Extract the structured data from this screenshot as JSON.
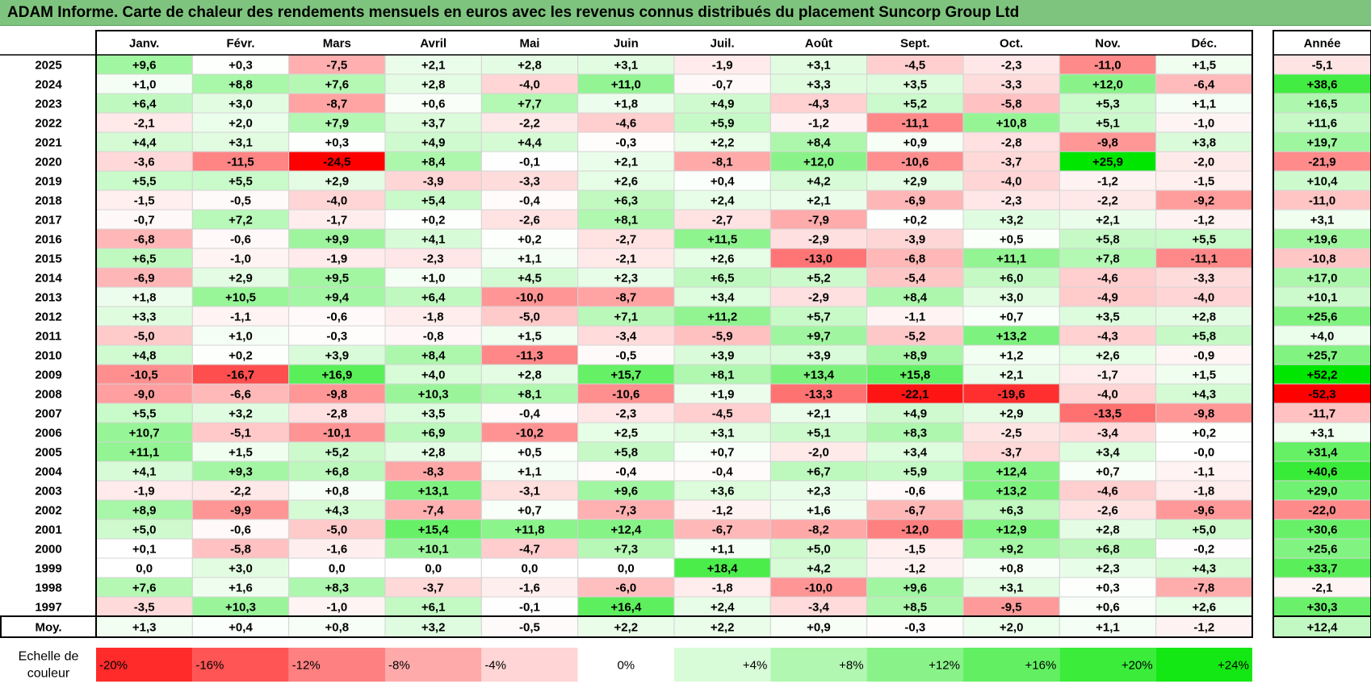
{
  "title": "ADAM Informe. Carte de chaleur des rendements mensuels en euros avec les revenus connus distribués du placement Suncorp Group Ltd",
  "chart_data": {
    "type": "heatmap",
    "months": [
      "Janv.",
      "Févr.",
      "Mars",
      "Avril",
      "Mai",
      "Juin",
      "Juil.",
      "Août",
      "Sept.",
      "Oct.",
      "Nov.",
      "Déc."
    ],
    "year_header": "Année",
    "avg_label": "Moy.",
    "rows": [
      {
        "year": "2025",
        "values": [
          "+9,6",
          "+0,3",
          "-7,5",
          "+2,1",
          "+2,8",
          "+3,1",
          "-1,9",
          "+3,1",
          "-4,5",
          "-2,3",
          "-11,0",
          "+1,5"
        ],
        "annual": "-5,1"
      },
      {
        "year": "2024",
        "values": [
          "+1,0",
          "+8,8",
          "+7,6",
          "+2,8",
          "-4,0",
          "+11,0",
          "-0,7",
          "+3,3",
          "+3,5",
          "-3,3",
          "+12,0",
          "-6,4"
        ],
        "annual": "+38,6"
      },
      {
        "year": "2023",
        "values": [
          "+6,4",
          "+3,0",
          "-8,7",
          "+0,6",
          "+7,7",
          "+1,8",
          "+4,9",
          "-4,3",
          "+5,2",
          "-5,8",
          "+5,3",
          "+1,1"
        ],
        "annual": "+16,5"
      },
      {
        "year": "2022",
        "values": [
          "-2,1",
          "+2,0",
          "+7,9",
          "+3,7",
          "-2,2",
          "-4,6",
          "+5,9",
          "-1,2",
          "-11,1",
          "+10,8",
          "+5,1",
          "-1,0"
        ],
        "annual": "+11,6"
      },
      {
        "year": "2021",
        "values": [
          "+4,4",
          "+3,1",
          "+0,3",
          "+4,9",
          "+4,4",
          "-0,3",
          "+2,2",
          "+8,4",
          "+0,9",
          "-2,8",
          "-9,8",
          "+3,8"
        ],
        "annual": "+19,7"
      },
      {
        "year": "2020",
        "values": [
          "-3,6",
          "-11,5",
          "-24,5",
          "+8,4",
          "-0,1",
          "+2,1",
          "-8,1",
          "+12,0",
          "-10,6",
          "-3,7",
          "+25,9",
          "-2,0"
        ],
        "annual": "-21,9"
      },
      {
        "year": "2019",
        "values": [
          "+5,5",
          "+5,5",
          "+2,9",
          "-3,9",
          "-3,3",
          "+2,6",
          "+0,4",
          "+4,2",
          "+2,9",
          "-4,0",
          "-1,2",
          "-1,5"
        ],
        "annual": "+10,4"
      },
      {
        "year": "2018",
        "values": [
          "-1,5",
          "-0,5",
          "-4,0",
          "+5,4",
          "-0,4",
          "+6,3",
          "+2,4",
          "+2,1",
          "-6,9",
          "-2,3",
          "-2,2",
          "-9,2"
        ],
        "annual": "-11,0"
      },
      {
        "year": "2017",
        "values": [
          "-0,7",
          "+7,2",
          "-1,7",
          "+0,2",
          "-2,6",
          "+8,1",
          "-2,7",
          "-7,9",
          "+0,2",
          "+3,2",
          "+2,1",
          "-1,2"
        ],
        "annual": "+3,1"
      },
      {
        "year": "2016",
        "values": [
          "-6,8",
          "-0,6",
          "+9,9",
          "+4,1",
          "+0,2",
          "-2,7",
          "+11,5",
          "-2,9",
          "-3,9",
          "+0,5",
          "+5,8",
          "+5,5"
        ],
        "annual": "+19,6"
      },
      {
        "year": "2015",
        "values": [
          "+6,5",
          "-1,0",
          "-1,9",
          "-2,3",
          "+1,1",
          "-2,1",
          "+2,6",
          "-13,0",
          "-6,8",
          "+11,1",
          "+7,8",
          "-11,1"
        ],
        "annual": "-10,8"
      },
      {
        "year": "2014",
        "values": [
          "-6,9",
          "+2,9",
          "+9,5",
          "+1,0",
          "+4,5",
          "+2,3",
          "+6,5",
          "+5,2",
          "-5,4",
          "+6,0",
          "-4,6",
          "-3,3"
        ],
        "annual": "+17,0"
      },
      {
        "year": "2013",
        "values": [
          "+1,8",
          "+10,5",
          "+9,4",
          "+6,4",
          "-10,0",
          "-8,7",
          "+3,4",
          "-2,9",
          "+8,4",
          "+3,0",
          "-4,9",
          "-4,0"
        ],
        "annual": "+10,1"
      },
      {
        "year": "2012",
        "values": [
          "+3,3",
          "-1,1",
          "-0,6",
          "-1,8",
          "-5,0",
          "+7,1",
          "+11,2",
          "+5,7",
          "-1,1",
          "+0,7",
          "+3,5",
          "+2,8"
        ],
        "annual": "+25,6"
      },
      {
        "year": "2011",
        "values": [
          "-5,0",
          "+1,0",
          "-0,3",
          "-0,8",
          "+1,5",
          "-3,4",
          "-5,9",
          "+9,7",
          "-5,2",
          "+13,2",
          "-4,3",
          "+5,8"
        ],
        "annual": "+4,0"
      },
      {
        "year": "2010",
        "values": [
          "+4,8",
          "+0,2",
          "+3,9",
          "+8,4",
          "-11,3",
          "-0,5",
          "+3,9",
          "+3,9",
          "+8,9",
          "+1,2",
          "+2,6",
          "-0,9"
        ],
        "annual": "+25,7"
      },
      {
        "year": "2009",
        "values": [
          "-10,5",
          "-16,7",
          "+16,9",
          "+4,0",
          "+2,8",
          "+15,7",
          "+8,1",
          "+13,4",
          "+15,8",
          "+2,1",
          "-1,7",
          "+1,5"
        ],
        "annual": "+52,2"
      },
      {
        "year": "2008",
        "values": [
          "-9,0",
          "-6,6",
          "-9,8",
          "+10,3",
          "+8,1",
          "-10,6",
          "+1,9",
          "-13,3",
          "-22,1",
          "-19,6",
          "-4,0",
          "+4,3"
        ],
        "annual": "-52,3"
      },
      {
        "year": "2007",
        "values": [
          "+5,5",
          "+3,2",
          "-2,8",
          "+3,5",
          "-0,4",
          "-2,3",
          "-4,5",
          "+2,1",
          "+4,9",
          "+2,9",
          "-13,5",
          "-9,8"
        ],
        "annual": "-11,7"
      },
      {
        "year": "2006",
        "values": [
          "+10,7",
          "-5,1",
          "-10,1",
          "+6,9",
          "-10,2",
          "+2,5",
          "+3,1",
          "+5,1",
          "+8,3",
          "-2,5",
          "-3,4",
          "+0,2"
        ],
        "annual": "+3,1"
      },
      {
        "year": "2005",
        "values": [
          "+11,1",
          "+1,5",
          "+5,2",
          "+2,8",
          "+0,5",
          "+5,8",
          "+0,7",
          "-2,0",
          "+3,4",
          "-3,7",
          "+3,4",
          "-0,0"
        ],
        "annual": "+31,4"
      },
      {
        "year": "2004",
        "values": [
          "+4,1",
          "+9,3",
          "+6,8",
          "-8,3",
          "+1,1",
          "-0,4",
          "-0,4",
          "+6,7",
          "+5,9",
          "+12,4",
          "+0,7",
          "-1,1"
        ],
        "annual": "+40,6"
      },
      {
        "year": "2003",
        "values": [
          "-1,9",
          "-2,2",
          "+0,8",
          "+13,1",
          "-3,1",
          "+9,6",
          "+3,6",
          "+2,3",
          "-0,6",
          "+13,2",
          "-4,6",
          "-1,8"
        ],
        "annual": "+29,0"
      },
      {
        "year": "2002",
        "values": [
          "+8,9",
          "-9,9",
          "+4,3",
          "-7,4",
          "+0,7",
          "-7,3",
          "-1,2",
          "+1,6",
          "-6,7",
          "+6,3",
          "-2,6",
          "-9,6"
        ],
        "annual": "-22,0"
      },
      {
        "year": "2001",
        "values": [
          "+5,0",
          "-0,6",
          "-5,0",
          "+15,4",
          "+11,8",
          "+12,4",
          "-6,7",
          "-8,2",
          "-12,0",
          "+12,9",
          "+2,8",
          "+5,0"
        ],
        "annual": "+30,6"
      },
      {
        "year": "2000",
        "values": [
          "+0,1",
          "-5,8",
          "-1,6",
          "+10,1",
          "-4,7",
          "+7,3",
          "+1,1",
          "+5,0",
          "-1,5",
          "+9,2",
          "+6,8",
          "-0,2"
        ],
        "annual": "+25,6"
      },
      {
        "year": "1999",
        "values": [
          "0,0",
          "+3,0",
          "0,0",
          "0,0",
          "0,0",
          "0,0",
          "+18,4",
          "+4,2",
          "-1,2",
          "+0,8",
          "+2,3",
          "+4,3"
        ],
        "annual": "+33,7"
      },
      {
        "year": "1998",
        "values": [
          "+7,6",
          "+1,6",
          "+8,3",
          "-3,7",
          "-1,6",
          "-6,0",
          "-1,8",
          "-10,0",
          "+9,6",
          "+3,1",
          "+0,3",
          "-7,8"
        ],
        "annual": "-2,1"
      },
      {
        "year": "1997",
        "values": [
          "-3,5",
          "+10,3",
          "-1,0",
          "+6,1",
          "-0,1",
          "+16,4",
          "+2,4",
          "-3,4",
          "+8,5",
          "-9,5",
          "+0,6",
          "+2,6"
        ],
        "annual": "+30,3"
      }
    ],
    "averages": {
      "values": [
        "+1,3",
        "+0,4",
        "+0,8",
        "+3,2",
        "-0,5",
        "+2,2",
        "+2,2",
        "+0,9",
        "-0,3",
        "+2,0",
        "+1,1",
        "-1,2"
      ],
      "annual": "+12,4"
    },
    "scale": {
      "label_line1": "Echelle de",
      "label_line2": "couleur",
      "steps": [
        "-20%",
        "-16%",
        "-12%",
        "-8%",
        "-4%",
        "0%",
        "+4%",
        "+8%",
        "+12%",
        "+16%",
        "+20%",
        "+24%"
      ]
    },
    "colors": {
      "title_bg": "#7ec47e",
      "neg_max": "#ff0000",
      "neutral": "#ffffff",
      "pos_max": "#00e600"
    }
  }
}
